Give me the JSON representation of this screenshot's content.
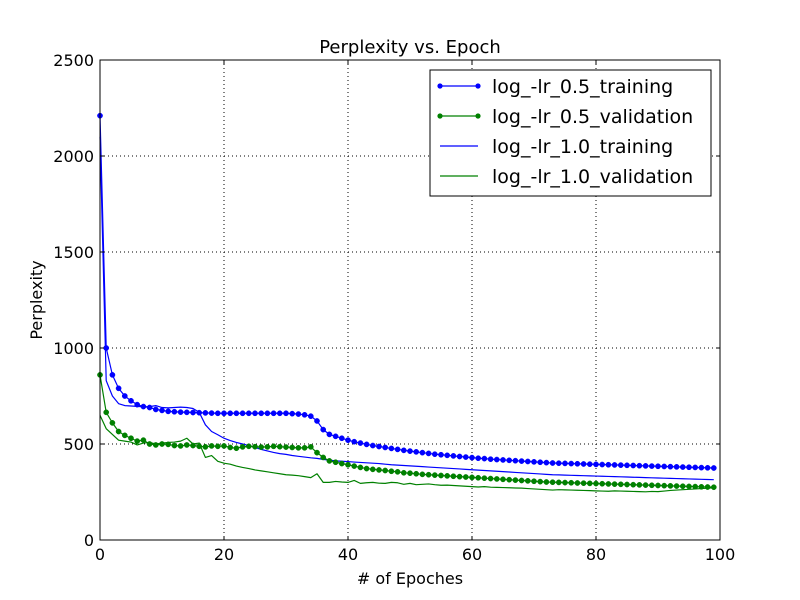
{
  "chart_data": {
    "type": "line",
    "title": "Perplexity vs. Epoch",
    "xlabel": "# of Epoches",
    "ylabel": "Perplexity",
    "xlim": [
      0,
      100
    ],
    "ylim": [
      0,
      2500
    ],
    "xticks": [
      0,
      20,
      40,
      60,
      80,
      100
    ],
    "yticks": [
      0,
      500,
      1000,
      1500,
      2000,
      2500
    ],
    "grid": true,
    "legend_position": "top-right",
    "series": [
      {
        "name": "log_-lr_0.5_training",
        "color": "#0000ff",
        "marker": true,
        "x": [
          0,
          1,
          2,
          3,
          4,
          5,
          6,
          7,
          8,
          9,
          10,
          11,
          12,
          13,
          14,
          15,
          16,
          17,
          18,
          19,
          20,
          21,
          22,
          23,
          24,
          25,
          26,
          27,
          28,
          29,
          30,
          31,
          32,
          33,
          34,
          35,
          36,
          37,
          38,
          39,
          40,
          41,
          42,
          43,
          44,
          45,
          46,
          47,
          48,
          49,
          50,
          51,
          52,
          53,
          54,
          55,
          56,
          57,
          58,
          59,
          60,
          61,
          62,
          63,
          64,
          65,
          66,
          67,
          68,
          69,
          70,
          71,
          72,
          73,
          74,
          75,
          76,
          77,
          78,
          79,
          80,
          81,
          82,
          83,
          84,
          85,
          86,
          87,
          88,
          89,
          90,
          91,
          92,
          93,
          94,
          95,
          96,
          97,
          98,
          99
        ],
        "y": [
          2210,
          1000,
          860,
          790,
          750,
          725,
          705,
          695,
          690,
          680,
          675,
          670,
          668,
          666,
          665,
          664,
          663,
          662,
          661,
          660,
          660,
          660,
          660,
          660,
          660,
          660,
          660,
          660,
          660,
          660,
          660,
          658,
          656,
          652,
          645,
          620,
          575,
          550,
          540,
          530,
          520,
          512,
          505,
          498,
          492,
          487,
          482,
          477,
          472,
          467,
          463,
          459,
          455,
          451,
          447,
          444,
          441,
          438,
          435,
          432,
          429,
          426,
          424,
          421,
          419,
          417,
          415,
          413,
          411,
          409,
          407,
          405,
          403,
          401,
          400,
          399,
          398,
          397,
          396,
          395,
          394,
          393,
          392,
          391,
          390,
          389,
          388,
          387,
          386,
          385,
          384,
          383,
          382,
          381,
          380,
          379,
          378,
          377,
          376,
          375
        ]
      },
      {
        "name": "log_-lr_0.5_validation",
        "color": "#008000",
        "marker": true,
        "x": [
          0,
          1,
          2,
          3,
          4,
          5,
          6,
          7,
          8,
          9,
          10,
          11,
          12,
          13,
          14,
          15,
          16,
          17,
          18,
          19,
          20,
          21,
          22,
          23,
          24,
          25,
          26,
          27,
          28,
          29,
          30,
          31,
          32,
          33,
          34,
          35,
          36,
          37,
          38,
          39,
          40,
          41,
          42,
          43,
          44,
          45,
          46,
          47,
          48,
          49,
          50,
          51,
          52,
          53,
          54,
          55,
          56,
          57,
          58,
          59,
          60,
          61,
          62,
          63,
          64,
          65,
          66,
          67,
          68,
          69,
          70,
          71,
          72,
          73,
          74,
          75,
          76,
          77,
          78,
          79,
          80,
          81,
          82,
          83,
          84,
          85,
          86,
          87,
          88,
          89,
          90,
          91,
          92,
          93,
          94,
          95,
          96,
          97,
          98,
          99
        ],
        "y": [
          860,
          665,
          610,
          565,
          545,
          530,
          515,
          520,
          500,
          495,
          500,
          498,
          492,
          490,
          495,
          492,
          488,
          485,
          490,
          488,
          490,
          482,
          478,
          485,
          488,
          486,
          484,
          485,
          488,
          486,
          484,
          482,
          480,
          480,
          485,
          455,
          430,
          412,
          405,
          398,
          392,
          385,
          378,
          372,
          368,
          365,
          362,
          358,
          355,
          350,
          348,
          345,
          342,
          340,
          338,
          336,
          334,
          332,
          330,
          328,
          326,
          324,
          322,
          320,
          318,
          316,
          314,
          312,
          310,
          308,
          306,
          304,
          302,
          301,
          300,
          299,
          298,
          297,
          296,
          295,
          294,
          293,
          292,
          291,
          290,
          289,
          288,
          287,
          286,
          285,
          284,
          283,
          282,
          281,
          280,
          279,
          278,
          277,
          276,
          275
        ]
      },
      {
        "name": "log_-lr_1.0_training",
        "color": "#0000ff",
        "marker": false,
        "x": [
          0,
          1,
          2,
          3,
          4,
          5,
          6,
          7,
          8,
          9,
          10,
          11,
          12,
          13,
          14,
          15,
          16,
          17,
          18,
          19,
          20,
          21,
          22,
          23,
          24,
          25,
          26,
          27,
          28,
          29,
          30,
          31,
          32,
          33,
          34,
          35,
          36,
          37,
          38,
          39,
          40,
          41,
          42,
          43,
          44,
          45,
          46,
          47,
          48,
          49,
          50,
          51,
          52,
          53,
          54,
          55,
          56,
          57,
          58,
          59,
          60,
          61,
          62,
          63,
          64,
          65,
          66,
          67,
          68,
          69,
          70,
          71,
          72,
          73,
          74,
          75,
          76,
          77,
          78,
          79,
          80,
          81,
          82,
          83,
          84,
          85,
          86,
          87,
          88,
          89,
          90,
          91,
          92,
          93,
          94,
          95,
          96,
          97,
          98,
          99
        ],
        "y": [
          2100,
          830,
          750,
          710,
          700,
          698,
          696,
          694,
          695,
          700,
          690,
          688,
          690,
          692,
          690,
          685,
          665,
          600,
          565,
          548,
          530,
          518,
          508,
          500,
          492,
          482,
          472,
          464,
          456,
          450,
          446,
          440,
          436,
          432,
          428,
          425,
          420,
          416,
          412,
          410,
          408,
          406,
          404,
          402,
          400,
          398,
          395,
          392,
          390,
          388,
          386,
          384,
          382,
          380,
          378,
          376,
          374,
          372,
          370,
          368,
          366,
          364,
          362,
          360,
          358,
          356,
          354,
          352,
          350,
          348,
          346,
          344,
          342,
          340,
          339,
          338,
          337,
          336,
          335,
          334,
          333,
          332,
          331,
          330,
          329,
          328,
          327,
          326,
          325,
          324,
          323,
          322,
          321,
          320,
          319,
          318,
          317,
          316,
          315,
          314
        ]
      },
      {
        "name": "log_-lr_1.0_validation",
        "color": "#008000",
        "marker": false,
        "x": [
          0,
          1,
          2,
          3,
          4,
          5,
          6,
          7,
          8,
          9,
          10,
          11,
          12,
          13,
          14,
          15,
          16,
          17,
          18,
          19,
          20,
          21,
          22,
          23,
          24,
          25,
          26,
          27,
          28,
          29,
          30,
          31,
          32,
          33,
          34,
          35,
          36,
          37,
          38,
          39,
          40,
          41,
          42,
          43,
          44,
          45,
          46,
          47,
          48,
          49,
          50,
          51,
          52,
          53,
          54,
          55,
          56,
          57,
          58,
          59,
          60,
          61,
          62,
          63,
          64,
          65,
          66,
          67,
          68,
          69,
          70,
          71,
          72,
          73,
          74,
          75,
          76,
          77,
          78,
          79,
          80,
          81,
          82,
          83,
          84,
          85,
          86,
          87,
          88,
          89,
          90,
          91,
          92,
          93,
          94,
          95,
          96,
          97,
          98,
          99
        ],
        "y": [
          650,
          580,
          550,
          520,
          515,
          510,
          495,
          505,
          508,
          500,
          505,
          508,
          510,
          515,
          530,
          500,
          505,
          430,
          440,
          410,
          400,
          395,
          385,
          378,
          372,
          365,
          360,
          355,
          350,
          345,
          340,
          338,
          335,
          330,
          325,
          345,
          300,
          300,
          305,
          302,
          300,
          310,
          295,
          298,
          300,
          296,
          295,
          300,
          298,
          290,
          295,
          288,
          290,
          292,
          288,
          285,
          286,
          284,
          282,
          280,
          278,
          276,
          278,
          275,
          274,
          273,
          272,
          271,
          270,
          268,
          266,
          264,
          262,
          260,
          262,
          261,
          260,
          259,
          258,
          257,
          256,
          255,
          254,
          256,
          255,
          254,
          253,
          252,
          251,
          253,
          252,
          255,
          258,
          260,
          262,
          264,
          266,
          268,
          270,
          272
        ]
      }
    ]
  }
}
